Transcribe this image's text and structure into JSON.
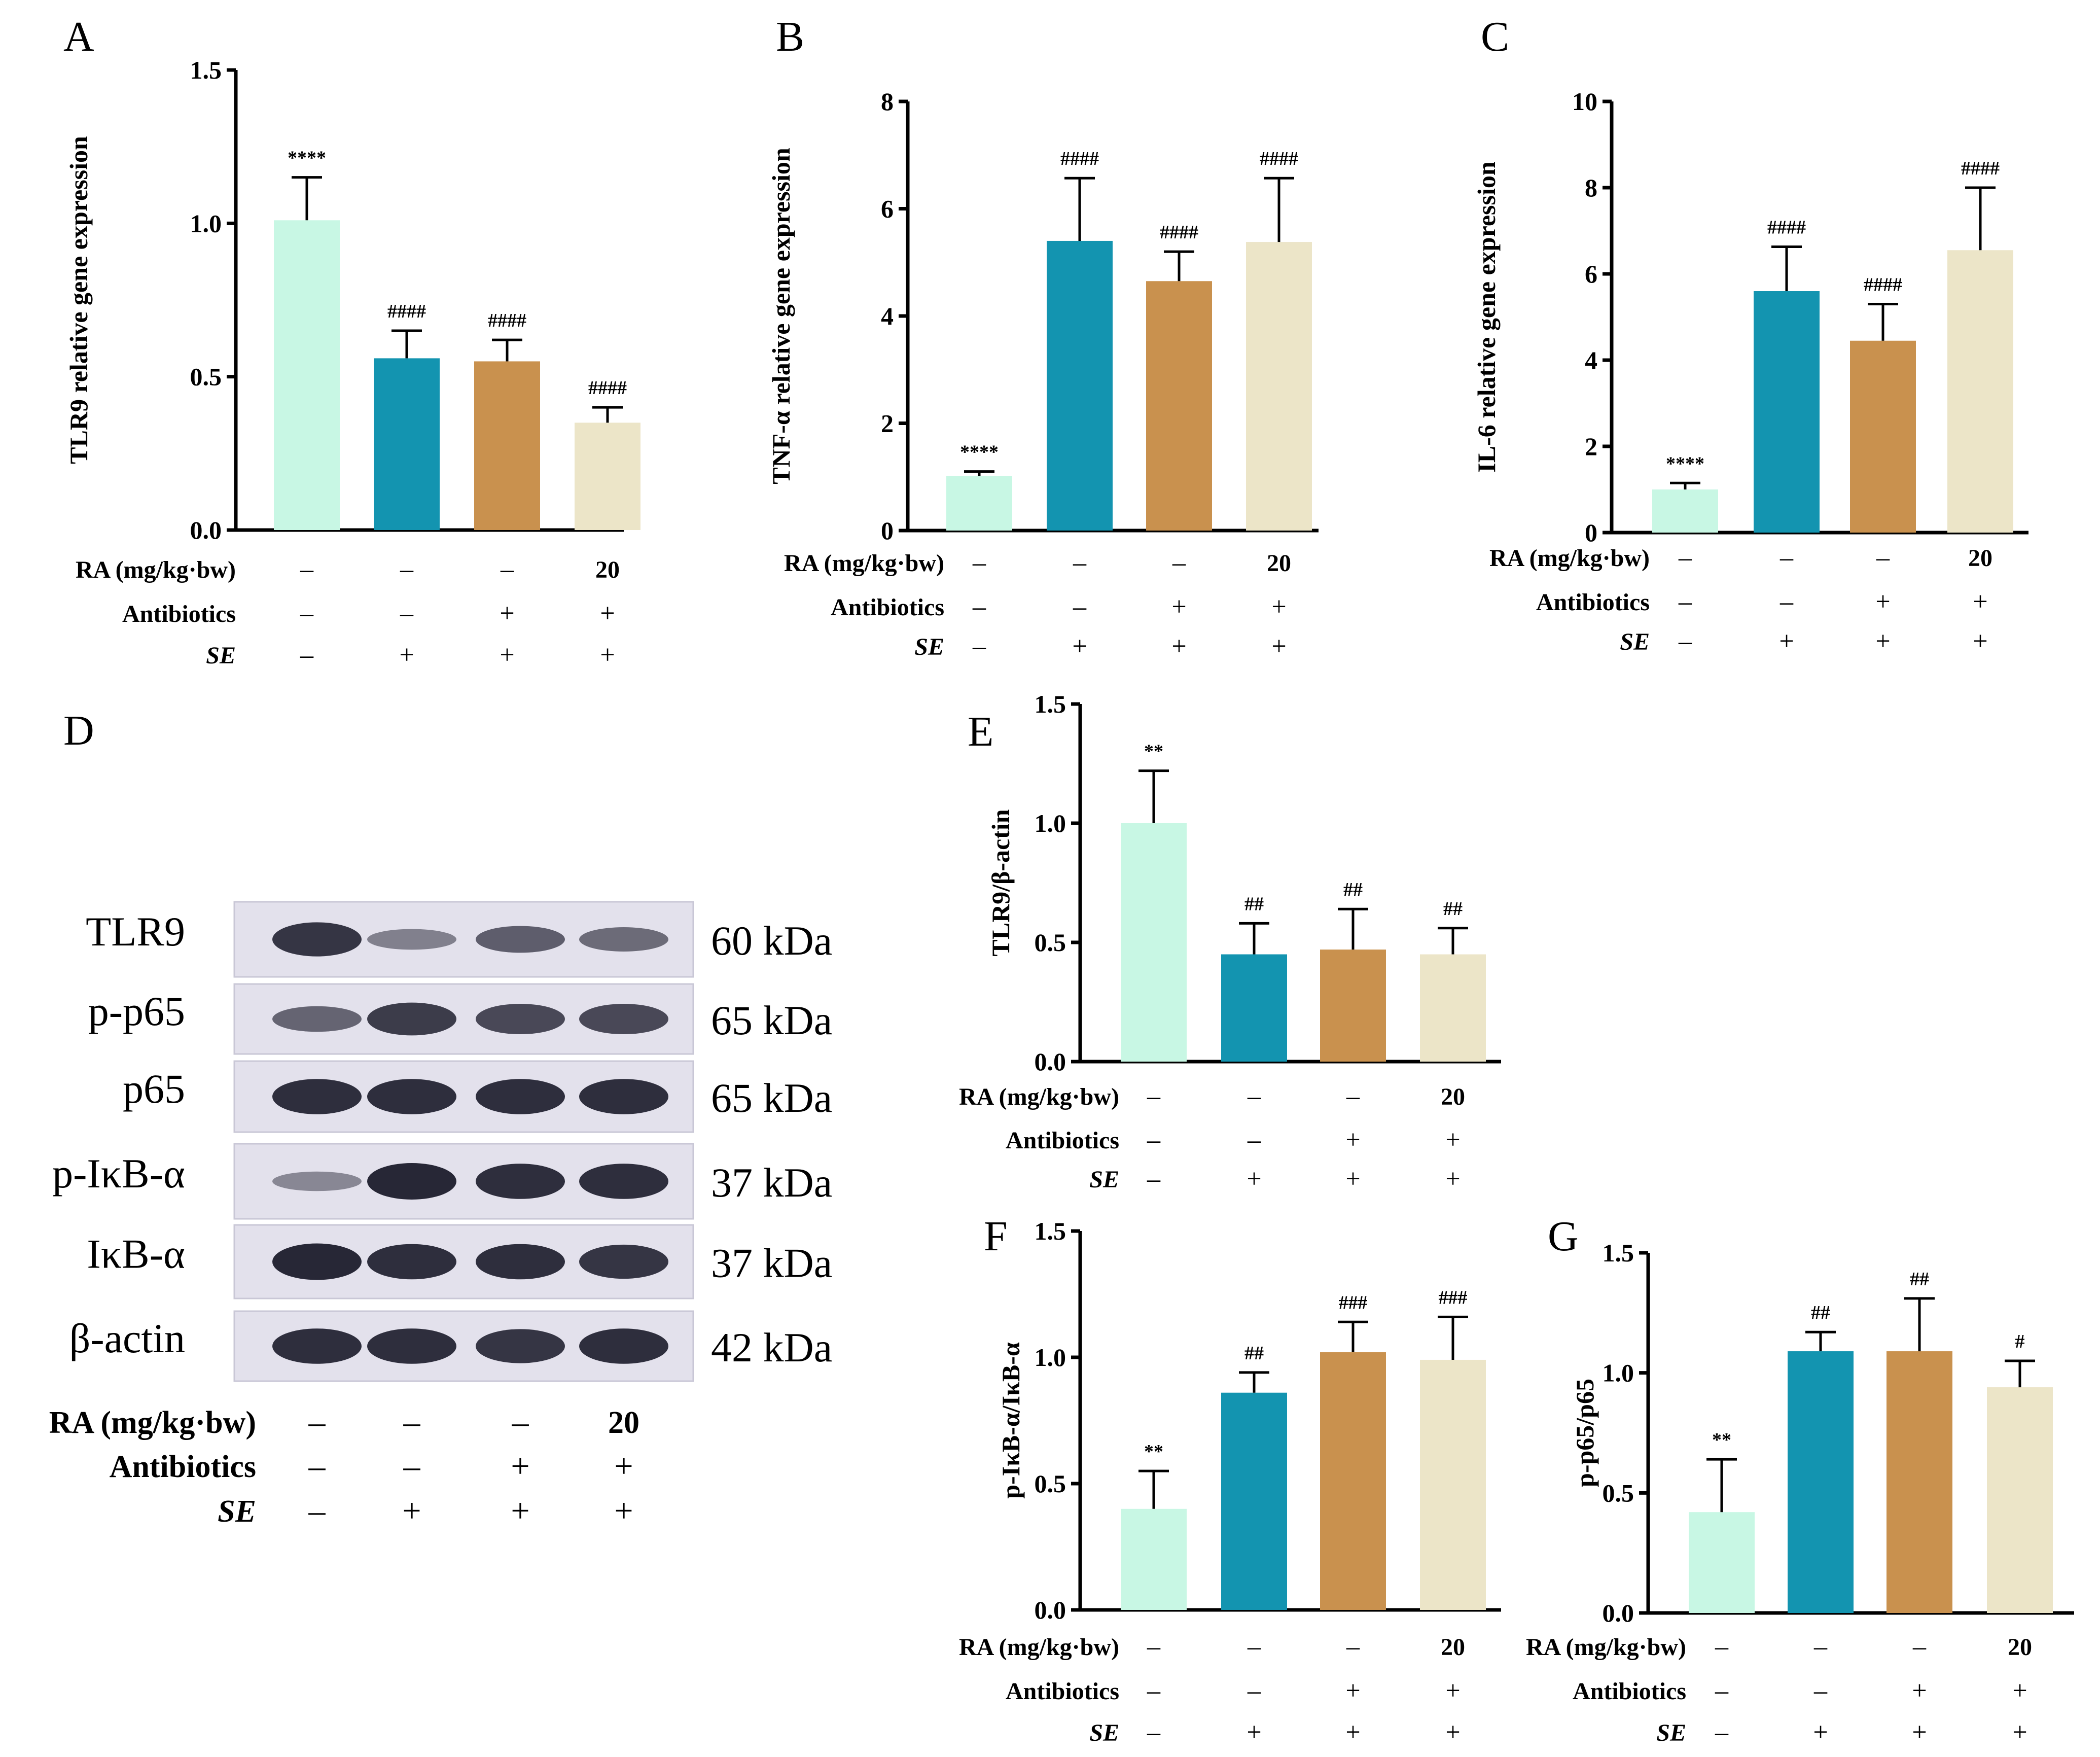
{
  "colors": [
    "#c8f7e4",
    "#1394b0",
    "#c9914e",
    "#ece5c8"
  ],
  "chart_data": [
    {
      "panel": "A",
      "type": "bar",
      "ylabel": "TLR9 relative gene expression",
      "ylim": [
        0,
        1.5
      ],
      "yticks": [
        "0.0",
        "0.5",
        "1.0",
        "1.5"
      ],
      "values": [
        1.01,
        0.56,
        0.55,
        0.35
      ],
      "errors": [
        0.14,
        0.09,
        0.07,
        0.05
      ],
      "sig": [
        "****",
        "####",
        "####",
        "####"
      ],
      "conditions": [
        {
          "label": "RA (mg/kg·bw)",
          "values": [
            "–",
            "–",
            "–",
            "20"
          ]
        },
        {
          "label": "Antibiotics",
          "values": [
            "–",
            "–",
            "+",
            "+"
          ]
        },
        {
          "label": "SE",
          "values": [
            "–",
            "+",
            "+",
            "+"
          ]
        }
      ]
    },
    {
      "panel": "B",
      "type": "bar",
      "ylabel": "TNF-α relative gene expression",
      "ylim": [
        0,
        8
      ],
      "yticks": [
        "0",
        "2",
        "4",
        "6",
        "8"
      ],
      "values": [
        1.02,
        5.4,
        4.65,
        5.38
      ],
      "errors": [
        0.08,
        1.17,
        0.55,
        1.19
      ],
      "sig": [
        "****",
        "####",
        "####",
        "####"
      ],
      "conditions": [
        {
          "label": "RA (mg/kg·bw)",
          "values": [
            "–",
            "–",
            "–",
            "20"
          ]
        },
        {
          "label": "Antibiotics",
          "values": [
            "–",
            "–",
            "+",
            "+"
          ]
        },
        {
          "label": "SE",
          "values": [
            "–",
            "+",
            "+",
            "+"
          ]
        }
      ]
    },
    {
      "panel": "C",
      "type": "bar",
      "ylabel": "IL-6 relative gene expression",
      "ylim": [
        0,
        10
      ],
      "yticks": [
        "0",
        "2",
        "4",
        "6",
        "8",
        "10"
      ],
      "values": [
        1.0,
        5.6,
        4.45,
        6.55
      ],
      "errors": [
        0.15,
        1.03,
        0.85,
        1.45
      ],
      "sig": [
        "****",
        "####",
        "####",
        "####"
      ],
      "conditions": [
        {
          "label": "RA (mg/kg·bw)",
          "values": [
            "–",
            "–",
            "–",
            "20"
          ]
        },
        {
          "label": "Antibiotics",
          "values": [
            "–",
            "–",
            "+",
            "+"
          ]
        },
        {
          "label": "SE",
          "values": [
            "–",
            "+",
            "+",
            "+"
          ]
        }
      ]
    },
    {
      "panel": "E",
      "type": "bar",
      "ylabel": "TLR9/β-actin",
      "ylim": [
        0,
        1.5
      ],
      "yticks": [
        "0.0",
        "0.5",
        "1.0",
        "1.5"
      ],
      "values": [
        1.0,
        0.45,
        0.47,
        0.45
      ],
      "errors": [
        0.22,
        0.13,
        0.17,
        0.11
      ],
      "sig": [
        "**",
        "##",
        "##",
        "##"
      ],
      "conditions": [
        {
          "label": "RA (mg/kg·bw)",
          "values": [
            "–",
            "–",
            "–",
            "20"
          ]
        },
        {
          "label": "Antibiotics",
          "values": [
            "–",
            "–",
            "+",
            "+"
          ]
        },
        {
          "label": "SE",
          "values": [
            "–",
            "+",
            "+",
            "+"
          ]
        }
      ]
    },
    {
      "panel": "F",
      "type": "bar",
      "ylabel": "p-IκB-α/IκB-α",
      "ylim": [
        0,
        1.5
      ],
      "yticks": [
        "0.0",
        "0.5",
        "1.0",
        "1.5"
      ],
      "values": [
        0.4,
        0.86,
        1.02,
        0.99
      ],
      "errors": [
        0.15,
        0.08,
        0.12,
        0.17
      ],
      "sig": [
        "**",
        "##",
        "###",
        "###"
      ],
      "conditions": [
        {
          "label": "RA (mg/kg·bw)",
          "values": [
            "–",
            "–",
            "–",
            "20"
          ]
        },
        {
          "label": "Antibiotics",
          "values": [
            "–",
            "–",
            "+",
            "+"
          ]
        },
        {
          "label": "SE",
          "values": [
            "–",
            "+",
            "+",
            "+"
          ]
        }
      ]
    },
    {
      "panel": "G",
      "type": "bar",
      "ylabel": "p-p65/p65",
      "ylim": [
        0,
        1.5
      ],
      "yticks": [
        "0.0",
        "0.5",
        "1.0",
        "1.5"
      ],
      "values": [
        0.42,
        1.09,
        1.09,
        0.94
      ],
      "errors": [
        0.22,
        0.08,
        0.22,
        0.11
      ],
      "sig": [
        "**",
        "##",
        "##",
        "#"
      ],
      "conditions": [
        {
          "label": "RA (mg/kg·bw)",
          "values": [
            "–",
            "–",
            "–",
            "20"
          ]
        },
        {
          "label": "Antibiotics",
          "values": [
            "–",
            "–",
            "+",
            "+"
          ]
        },
        {
          "label": "SE",
          "values": [
            "–",
            "+",
            "+",
            "+"
          ]
        }
      ]
    }
  ],
  "western_blot": {
    "panel": "D",
    "bands": [
      {
        "label": "TLR9",
        "kda": "60 kDa",
        "intensity": [
          0.9,
          0.35,
          0.6,
          0.5
        ]
      },
      {
        "label": "p-p65",
        "kda": "65 kDa",
        "intensity": [
          0.55,
          0.85,
          0.75,
          0.75
        ]
      },
      {
        "label": "p65",
        "kda": "65 kDa",
        "intensity": [
          0.95,
          0.95,
          0.95,
          0.95
        ]
      },
      {
        "label": "p-IκB-α",
        "kda": "37 kDa",
        "intensity": [
          0.3,
          1.0,
          0.95,
          0.95
        ]
      },
      {
        "label": "IκB-α",
        "kda": "37 kDa",
        "intensity": [
          1.0,
          0.95,
          0.95,
          0.9
        ]
      },
      {
        "label": "β-actin",
        "kda": "42 kDa",
        "intensity": [
          0.95,
          0.95,
          0.9,
          0.95
        ]
      }
    ],
    "conditions": [
      {
        "label": "RA (mg/kg·bw)",
        "values": [
          "–",
          "–",
          "–",
          "20"
        ]
      },
      {
        "label": "Antibiotics",
        "values": [
          "–",
          "–",
          "+",
          "+"
        ]
      },
      {
        "label": "SE",
        "values": [
          "–",
          "+",
          "+",
          "+"
        ]
      }
    ]
  }
}
